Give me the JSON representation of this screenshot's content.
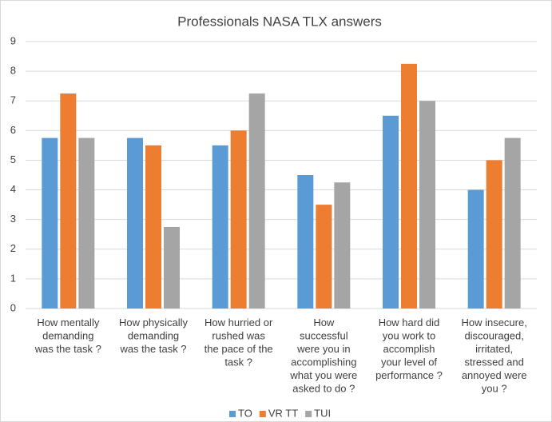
{
  "chart_data": {
    "type": "bar",
    "title": "Professionals NASA TLX answers",
    "categories": [
      "How mentally\ndemanding\nwas the task ?",
      "How physically\ndemanding\nwas the task ?",
      "How hurried or\nrushed  was\nthe pace of the\ntask ?",
      "How\nsuccessful\nwere you in\naccomplishing\nwhat you were\nasked to do ?",
      "How hard did\nyou work to\naccomplish\nyour level of\nperformance ?",
      "How insecure,\ndiscouraged,\nirritated,\nstressed and\nannoyed were\nyou ?"
    ],
    "series": [
      {
        "name": "TO",
        "color": "#5b9bd5",
        "values": [
          5.75,
          5.75,
          5.5,
          4.5,
          6.5,
          4
        ]
      },
      {
        "name": "VR TT",
        "color": "#ed7d31",
        "values": [
          7.25,
          5.5,
          6,
          3.5,
          8.25,
          5
        ]
      },
      {
        "name": "TUI",
        "color": "#a5a5a5",
        "values": [
          5.75,
          2.75,
          7.25,
          4.25,
          7,
          5.75
        ]
      }
    ],
    "ylim": [
      0,
      9
    ],
    "yticks": [
      0,
      1,
      2,
      3,
      4,
      5,
      6,
      7,
      8,
      9
    ],
    "grid": true,
    "legend": "bottom"
  }
}
